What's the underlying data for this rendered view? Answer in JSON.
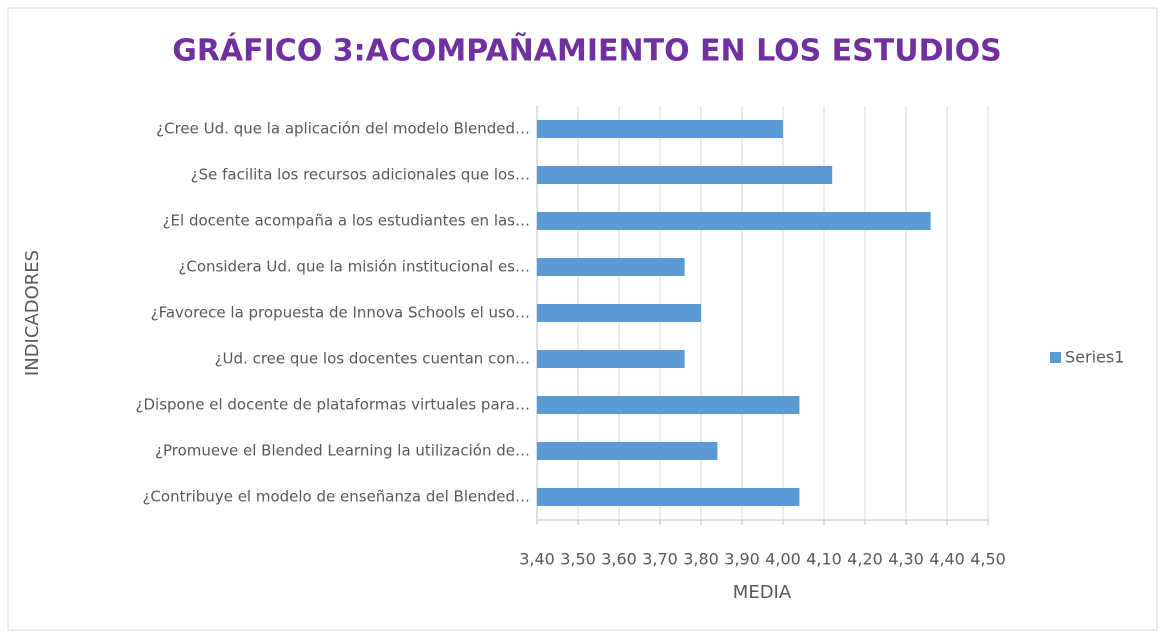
{
  "chart_data": {
    "type": "bar",
    "orientation": "horizontal",
    "title": "GRÁFICO 3:ACOMPAÑAMIENTO EN LOS ESTUDIOS",
    "x_label": "MEDIA",
    "y_label": "INDICADORES",
    "categories": [
      "¿Cree Ud. que la aplicación del modelo  Blended…",
      "¿Se facilita los recursos adicionales que los…",
      "¿El docente acompaña a los estudiantes en las…",
      "¿Considera Ud. que la misión institucional es…",
      "¿Favorece la propuesta de  Innova Schools el uso…",
      "¿Ud. cree que los docentes cuentan con…",
      "¿Dispone el docente de plataformas virtuales para…",
      "¿Promueve el Blended Learning la utilización de…",
      "¿Contribuye el modelo de enseñanza del Blended…"
    ],
    "series": [
      {
        "name": "Series1",
        "color": "#5b9bd5",
        "values": [
          4.0,
          4.12,
          4.36,
          3.76,
          3.8,
          3.76,
          4.04,
          3.84,
          4.04
        ]
      }
    ],
    "xlim": [
      3.4,
      4.5
    ],
    "xticks": [
      {
        "value": 3.4,
        "label": "3,40"
      },
      {
        "value": 3.5,
        "label": "3,50"
      },
      {
        "value": 3.6,
        "label": "3,60"
      },
      {
        "value": 3.7,
        "label": "3,70"
      },
      {
        "value": 3.8,
        "label": "3,80"
      },
      {
        "value": 3.9,
        "label": "3,90"
      },
      {
        "value": 4.0,
        "label": "4,00"
      },
      {
        "value": 4.1,
        "label": "4,10"
      },
      {
        "value": 4.2,
        "label": "4,20"
      },
      {
        "value": 4.3,
        "label": "4,30"
      },
      {
        "value": 4.4,
        "label": "4,40"
      },
      {
        "value": 4.5,
        "label": "4,50"
      }
    ],
    "grid": true,
    "legend": "right"
  }
}
